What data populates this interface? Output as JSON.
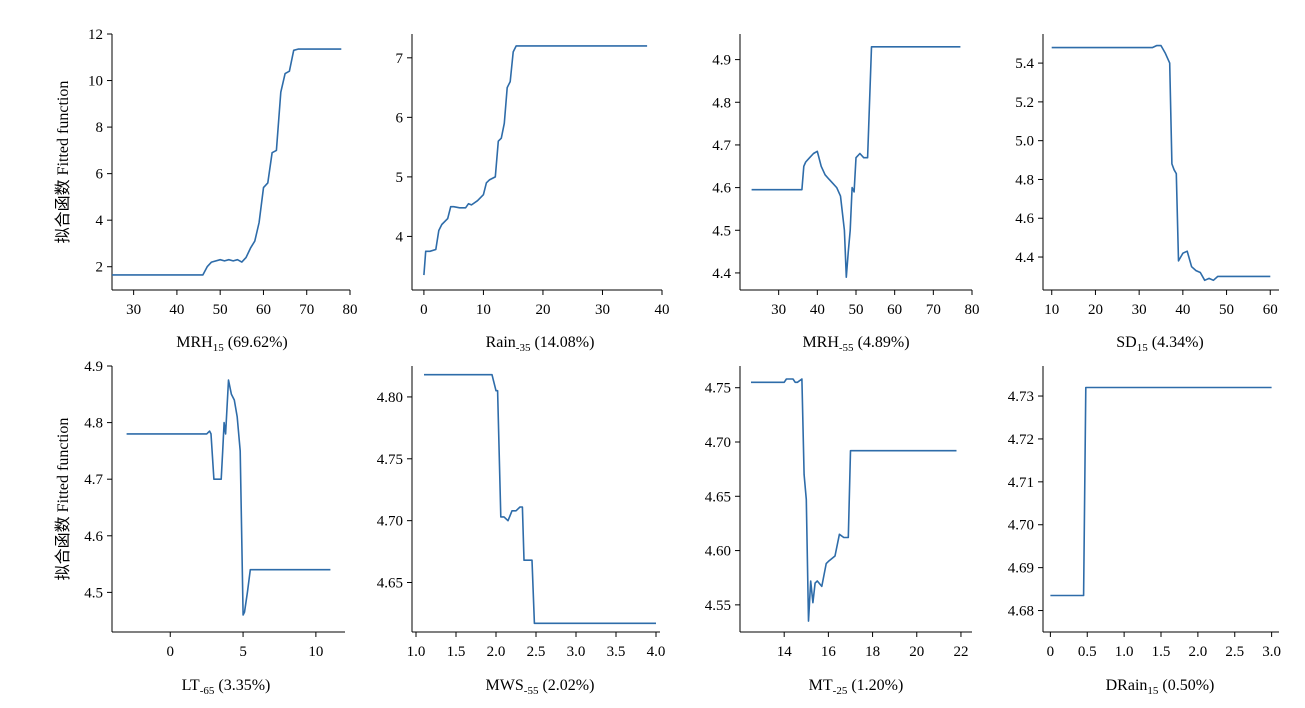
{
  "line_color": "#2e6ca9",
  "chart_data": [
    {
      "type": "line",
      "xlabel_parts": [
        "MRH",
        "15",
        " (69.62%)"
      ],
      "ylabel": "拟合函数 Fitted function",
      "xlim": [
        25,
        80
      ],
      "ylim": [
        1,
        12
      ],
      "xticks": [
        30,
        40,
        50,
        60,
        70,
        80
      ],
      "xtick_labels": [
        "30",
        "40",
        "50",
        "60",
        "70",
        "80"
      ],
      "yticks": [
        2,
        4,
        6,
        8,
        10,
        12
      ],
      "ytick_labels": [
        "2",
        "4",
        "6",
        "8",
        "10",
        "12"
      ],
      "series": [
        {
          "x": [
            25,
            46,
            47,
            48,
            50,
            51,
            52,
            53,
            54,
            55,
            56,
            57,
            58,
            59,
            60,
            61,
            62,
            63,
            64,
            65,
            66,
            67,
            68,
            70,
            72,
            74,
            76,
            78
          ],
          "y": [
            1.65,
            1.65,
            2.0,
            2.2,
            2.3,
            2.25,
            2.3,
            2.25,
            2.3,
            2.2,
            2.4,
            2.8,
            3.1,
            3.9,
            5.4,
            5.6,
            6.9,
            7.0,
            9.5,
            10.3,
            10.4,
            11.3,
            11.35,
            11.35,
            11.35,
            11.35,
            11.35,
            11.35
          ]
        }
      ]
    },
    {
      "type": "line",
      "xlabel_parts": [
        "Rain",
        "-35",
        " (14.08%)"
      ],
      "ylabel": "",
      "xlim": [
        -2,
        40
      ],
      "ylim": [
        3.1,
        7.4
      ],
      "xticks": [
        0,
        10,
        20,
        30,
        40
      ],
      "xtick_labels": [
        "0",
        "10",
        "20",
        "30",
        "40"
      ],
      "yticks": [
        4,
        5,
        6,
        7
      ],
      "ytick_labels": [
        "4",
        "5",
        "6",
        "7"
      ],
      "series": [
        {
          "x": [
            0,
            0.3,
            1,
            2,
            2.5,
            3,
            4,
            4.5,
            5,
            6,
            7,
            7.5,
            8,
            9,
            10,
            10.5,
            11,
            12,
            12.5,
            13,
            13.5,
            14,
            14.5,
            15,
            15.5,
            16,
            18,
            20,
            25,
            30,
            35,
            37.5
          ],
          "y": [
            3.35,
            3.75,
            3.75,
            3.78,
            4.1,
            4.2,
            4.3,
            4.5,
            4.5,
            4.48,
            4.48,
            4.55,
            4.53,
            4.6,
            4.7,
            4.9,
            4.95,
            5.0,
            5.6,
            5.65,
            5.9,
            6.5,
            6.6,
            7.1,
            7.2,
            7.2,
            7.2,
            7.2,
            7.2,
            7.2,
            7.2,
            7.2
          ]
        }
      ]
    },
    {
      "type": "line",
      "xlabel_parts": [
        "MRH",
        "-55",
        " (4.89%)"
      ],
      "ylabel": "",
      "xlim": [
        20,
        80
      ],
      "ylim": [
        4.36,
        4.96
      ],
      "xticks": [
        30,
        40,
        50,
        60,
        70,
        80
      ],
      "xtick_labels": [
        "30",
        "40",
        "50",
        "60",
        "70",
        "80"
      ],
      "yticks": [
        4.4,
        4.5,
        4.6,
        4.7,
        4.8,
        4.9
      ],
      "ytick_labels": [
        "4.4",
        "4.5",
        "4.6",
        "4.7",
        "4.8",
        "4.9"
      ],
      "series": [
        {
          "x": [
            23,
            36,
            36.5,
            37,
            38,
            39,
            40,
            41,
            42,
            43,
            44,
            45,
            46,
            47,
            47.5,
            48,
            48.5,
            49,
            49.5,
            50,
            51,
            52,
            53,
            54,
            55,
            60,
            70,
            77
          ],
          "y": [
            4.595,
            4.595,
            4.65,
            4.66,
            4.67,
            4.68,
            4.685,
            4.65,
            4.63,
            4.62,
            4.61,
            4.6,
            4.58,
            4.5,
            4.39,
            4.45,
            4.5,
            4.6,
            4.59,
            4.67,
            4.68,
            4.67,
            4.67,
            4.93,
            4.93,
            4.93,
            4.93,
            4.93
          ]
        }
      ]
    },
    {
      "type": "line",
      "xlabel_parts": [
        "SD",
        "15",
        " (4.34%)"
      ],
      "ylabel": "",
      "xlim": [
        8,
        62
      ],
      "ylim": [
        4.23,
        5.55
      ],
      "xticks": [
        10,
        20,
        30,
        40,
        50,
        60
      ],
      "xtick_labels": [
        "10",
        "20",
        "30",
        "40",
        "50",
        "60"
      ],
      "yticks": [
        4.4,
        4.6,
        4.8,
        5.0,
        5.2,
        5.4
      ],
      "ytick_labels": [
        "4.4",
        "4.6",
        "4.8",
        "5.0",
        "5.2",
        "5.4"
      ],
      "series": [
        {
          "x": [
            10,
            32,
            33,
            34,
            35,
            36,
            37,
            37.5,
            38,
            38.5,
            39,
            40,
            41,
            42,
            43,
            44,
            45,
            46,
            47,
            48,
            50,
            55,
            60
          ],
          "y": [
            5.48,
            5.48,
            5.48,
            5.49,
            5.49,
            5.45,
            5.4,
            4.88,
            4.85,
            4.83,
            4.38,
            4.42,
            4.43,
            4.35,
            4.33,
            4.32,
            4.28,
            4.29,
            4.28,
            4.3,
            4.3,
            4.3,
            4.3
          ]
        }
      ]
    },
    {
      "type": "line",
      "xlabel_parts": [
        "LT",
        "-65",
        " (3.35%)"
      ],
      "ylabel": "拟合函数 Fitted function",
      "xlim": [
        -4,
        12
      ],
      "ylim": [
        4.43,
        4.9
      ],
      "xticks": [
        0,
        5,
        10
      ],
      "xtick_labels": [
        "0",
        "5",
        "10"
      ],
      "yticks": [
        4.5,
        4.6,
        4.7,
        4.8,
        4.9
      ],
      "ytick_labels": [
        "4.5",
        "4.6",
        "4.7",
        "4.8",
        "4.9"
      ],
      "series": [
        {
          "x": [
            -3,
            2.5,
            2.7,
            2.8,
            3.0,
            3.3,
            3.5,
            3.6,
            3.7,
            3.8,
            4.0,
            4.2,
            4.4,
            4.6,
            4.8,
            5.0,
            5.1,
            5.3,
            5.5,
            6,
            8,
            11
          ],
          "y": [
            4.78,
            4.78,
            4.785,
            4.78,
            4.7,
            4.7,
            4.7,
            4.75,
            4.8,
            4.78,
            4.875,
            4.85,
            4.84,
            4.81,
            4.75,
            4.46,
            4.465,
            4.5,
            4.54,
            4.54,
            4.54,
            4.54
          ]
        }
      ]
    },
    {
      "type": "line",
      "xlabel_parts": [
        "MWS",
        "-55",
        " (2.02%)"
      ],
      "ylabel": "",
      "xlim": [
        0.95,
        4.05
      ],
      "ylim": [
        4.61,
        4.825
      ],
      "xticks": [
        1.0,
        1.5,
        2.0,
        2.5,
        3.0,
        3.5,
        4.0
      ],
      "xtick_labels": [
        "1.0",
        "1.5",
        "2.0",
        "2.5",
        "3.0",
        "3.5",
        "4.0"
      ],
      "yticks": [
        4.65,
        4.7,
        4.75,
        4.8
      ],
      "ytick_labels": [
        "4.65",
        "4.70",
        "4.75",
        "4.80"
      ],
      "series": [
        {
          "x": [
            1.1,
            1.95,
            2.0,
            2.02,
            2.06,
            2.1,
            2.15,
            2.2,
            2.25,
            2.3,
            2.33,
            2.35,
            2.4,
            2.45,
            2.48,
            2.5,
            3,
            4.0
          ],
          "y": [
            4.818,
            4.818,
            4.805,
            4.805,
            4.703,
            4.703,
            4.7,
            4.708,
            4.708,
            4.711,
            4.711,
            4.668,
            4.668,
            4.668,
            4.617,
            4.617,
            4.617,
            4.617
          ]
        }
      ]
    },
    {
      "type": "line",
      "xlabel_parts": [
        "MT",
        "-25",
        " (1.20%)"
      ],
      "ylabel": "",
      "xlim": [
        12,
        22.5
      ],
      "ylim": [
        4.525,
        4.77
      ],
      "xticks": [
        14,
        16,
        18,
        20,
        22
      ],
      "xtick_labels": [
        "14",
        "16",
        "18",
        "20",
        "22"
      ],
      "yticks": [
        4.55,
        4.6,
        4.65,
        4.7,
        4.75
      ],
      "ytick_labels": [
        "4.55",
        "4.60",
        "4.65",
        "4.70",
        "4.75"
      ],
      "series": [
        {
          "x": [
            12.5,
            14,
            14.1,
            14.4,
            14.5,
            14.6,
            14.8,
            14.9,
            15.0,
            15.1,
            15.2,
            15.3,
            15.4,
            15.5,
            15.7,
            15.9,
            16.0,
            16.3,
            16.5,
            16.7,
            16.9,
            17.0,
            17.5,
            21.8
          ],
          "y": [
            4.755,
            4.755,
            4.758,
            4.758,
            4.755,
            4.755,
            4.758,
            4.67,
            4.647,
            4.535,
            4.572,
            4.552,
            4.57,
            4.572,
            4.567,
            4.588,
            4.59,
            4.595,
            4.615,
            4.612,
            4.612,
            4.692,
            4.692,
            4.692
          ]
        }
      ]
    },
    {
      "type": "line",
      "xlabel_parts": [
        "DRain",
        "15",
        " (0.50%)"
      ],
      "ylabel": "",
      "xlim": [
        -0.1,
        3.1
      ],
      "ylim": [
        4.675,
        4.737
      ],
      "xticks": [
        0,
        0.5,
        1.0,
        1.5,
        2.0,
        2.5,
        3.0
      ],
      "xtick_labels": [
        "0",
        "0.5",
        "1.0",
        "1.5",
        "2.0",
        "2.5",
        "3.0"
      ],
      "yticks": [
        4.68,
        4.69,
        4.7,
        4.71,
        4.72,
        4.73
      ],
      "ytick_labels": [
        "4.68",
        "4.69",
        "4.70",
        "4.71",
        "4.72",
        "4.73"
      ],
      "series": [
        {
          "x": [
            0,
            0.45,
            0.48,
            0.5,
            1,
            2,
            3.0
          ],
          "y": [
            4.6835,
            4.6835,
            4.732,
            4.732,
            4.732,
            4.732,
            4.732
          ]
        }
      ]
    }
  ]
}
